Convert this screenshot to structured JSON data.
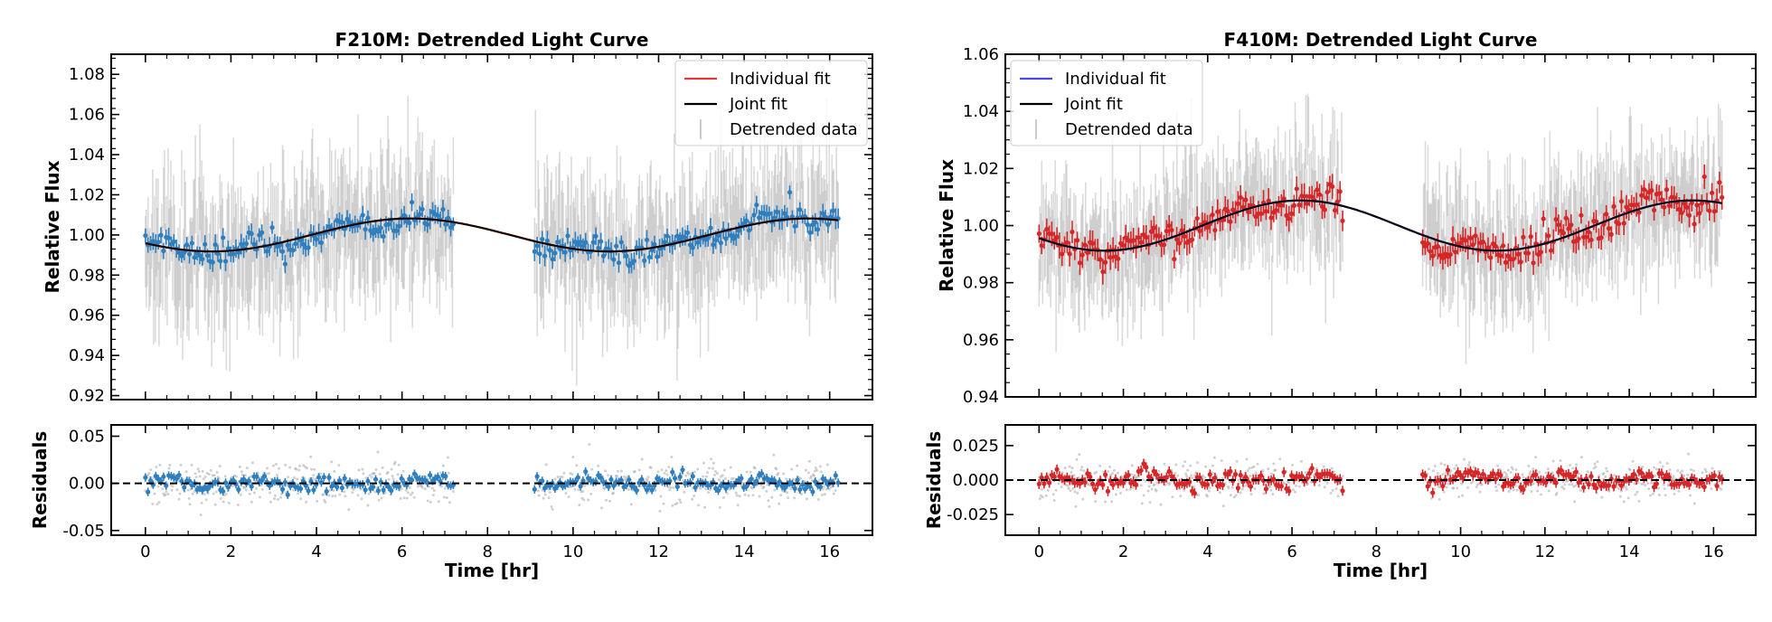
{
  "chart_data": [
    {
      "type": "line",
      "title": "F210M: Detrended Light Curve",
      "xlabel": "Time [hr]",
      "ylabel": "Relative Flux",
      "xlim": [
        -0.8,
        17.0
      ],
      "ylim": [
        0.918,
        1.09
      ],
      "xticks": [
        "0",
        "2",
        "4",
        "6",
        "8",
        "10",
        "12",
        "14",
        "16"
      ],
      "yticks": [
        "0.92",
        "0.94",
        "0.96",
        "0.98",
        "1.00",
        "1.02",
        "1.04",
        "1.06",
        "1.08"
      ],
      "legend_position": "top-right",
      "legend": [
        "Individual fit",
        "Joint fit",
        "Detrended data"
      ],
      "series": [
        {
          "name": "Individual fit",
          "color": "#e03a3a"
        },
        {
          "name": "Joint fit",
          "color": "#000000"
        },
        {
          "name": "Detrended data",
          "color": "#a9a9a9"
        }
      ],
      "binned_color": "#2f7fbf",
      "model": {
        "baseline": 1.0,
        "amplitude": 0.0082,
        "period_hr": 9.3,
        "peak_hr": 6.2
      },
      "segments": [
        [
          0.0,
          7.2
        ],
        [
          9.1,
          16.2
        ]
      ],
      "raw_scatter": 0.022,
      "binned_scatter": 0.004,
      "residuals": {
        "ylabel": "Residuals",
        "ylim": [
          -0.055,
          0.062
        ],
        "yticks": [
          "-0.05",
          "0.00",
          "0.05"
        ],
        "zero_line": "dashed",
        "raw_scatter": 0.02,
        "binned_scatter": 0.005
      }
    },
    {
      "type": "line",
      "title": "F410M: Detrended Light Curve",
      "xlabel": "Time [hr]",
      "ylabel": "Relative Flux",
      "xlim": [
        -0.8,
        17.0
      ],
      "ylim": [
        0.94,
        1.06
      ],
      "xticks": [
        "0",
        "2",
        "4",
        "6",
        "8",
        "10",
        "12",
        "14",
        "16"
      ],
      "yticks": [
        "0.94",
        "0.96",
        "0.98",
        "1.00",
        "1.02",
        "1.04",
        "1.06"
      ],
      "legend_position": "top-left",
      "legend": [
        "Individual fit",
        "Joint fit",
        "Detrended data"
      ],
      "series": [
        {
          "name": "Individual fit",
          "color": "#4a4ae0"
        },
        {
          "name": "Joint fit",
          "color": "#000000"
        },
        {
          "name": "Detrended data",
          "color": "#a9a9a9"
        }
      ],
      "binned_color": "#d62728",
      "model": {
        "baseline": 1.0,
        "amplitude": 0.0088,
        "period_hr": 9.3,
        "peak_hr": 6.2
      },
      "segments": [
        [
          0.0,
          7.2
        ],
        [
          9.1,
          16.2
        ]
      ],
      "raw_scatter": 0.014,
      "binned_scatter": 0.0035,
      "residuals": {
        "ylabel": "Residuals",
        "ylim": [
          -0.04,
          0.04
        ],
        "yticks": [
          "-0.025",
          "0.000",
          "0.025"
        ],
        "zero_line": "dashed",
        "raw_scatter": 0.012,
        "binned_scatter": 0.004
      }
    }
  ]
}
